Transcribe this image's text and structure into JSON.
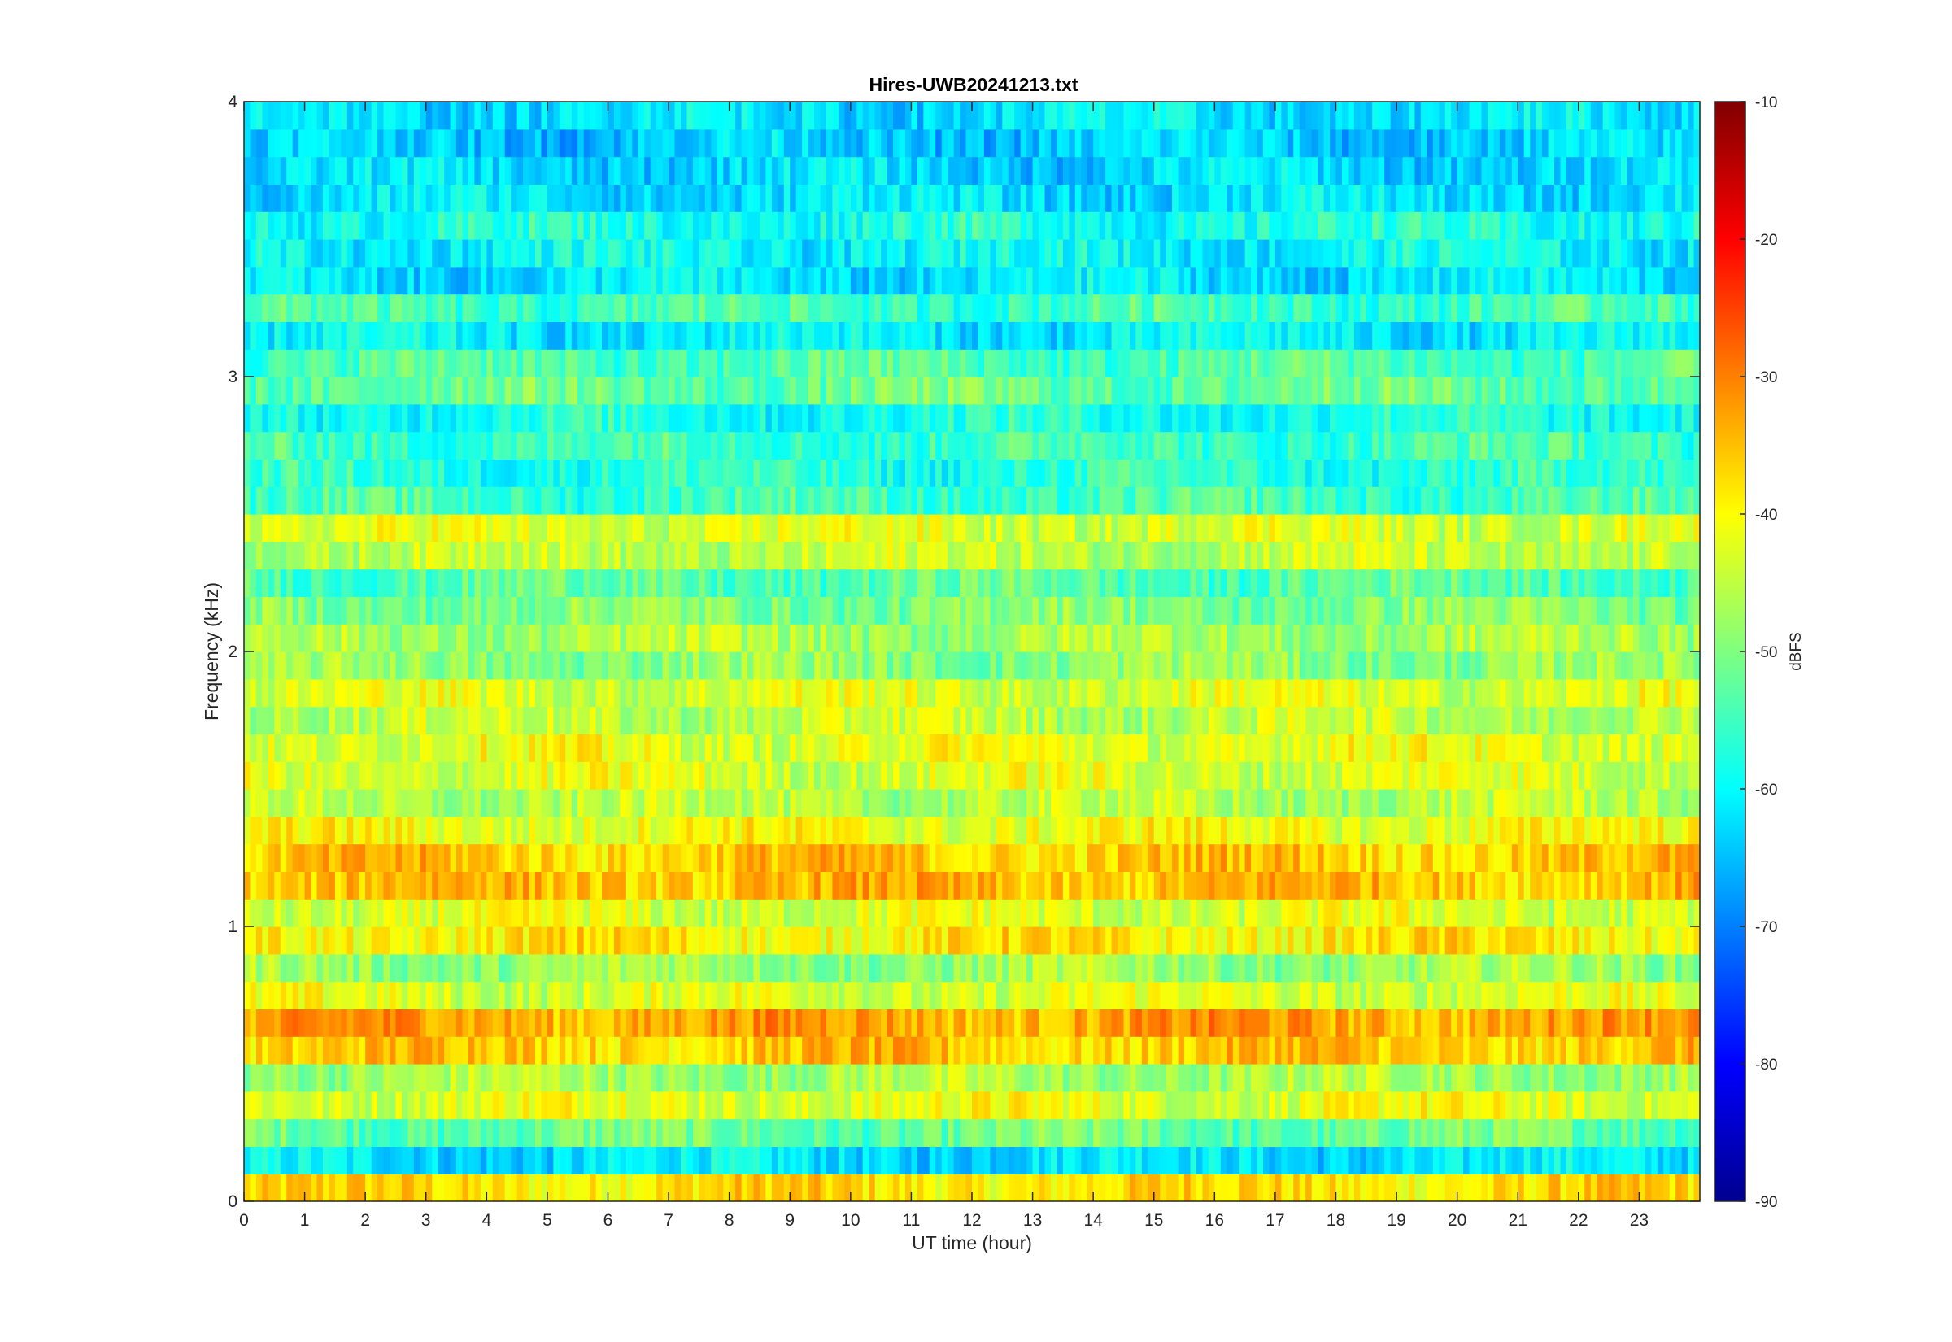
{
  "chart_data": {
    "type": "heatmap",
    "title": "Hires-UWB20241213.txt",
    "xlabel": "UT time (hour)",
    "ylabel": "Frequency (kHz)",
    "xlim": [
      0,
      24
    ],
    "ylim": [
      0,
      4
    ],
    "x_ticks": [
      "0",
      "1",
      "2",
      "3",
      "4",
      "5",
      "6",
      "7",
      "8",
      "9",
      "10",
      "11",
      "12",
      "13",
      "14",
      "15",
      "16",
      "17",
      "18",
      "19",
      "20",
      "21",
      "22",
      "23"
    ],
    "y_ticks": [
      "0",
      "1",
      "2",
      "3",
      "4"
    ],
    "colorbar": {
      "label": "dBFS",
      "colormap": "jet",
      "range": [
        -90,
        -10
      ],
      "ticks": [
        "-90",
        "-80",
        "-70",
        "-60",
        "-50",
        "-40",
        "-30",
        "-20",
        "-10"
      ]
    },
    "bands": [
      {
        "f": 0.05,
        "level": -38
      },
      {
        "f": 0.15,
        "level": -62
      },
      {
        "f": 0.25,
        "level": -52
      },
      {
        "f": 0.35,
        "level": -42
      },
      {
        "f": 0.45,
        "level": -47
      },
      {
        "f": 0.55,
        "level": -36
      },
      {
        "f": 0.65,
        "level": -33
      },
      {
        "f": 0.75,
        "level": -43
      },
      {
        "f": 0.85,
        "level": -48
      },
      {
        "f": 0.95,
        "level": -39
      },
      {
        "f": 1.05,
        "level": -43
      },
      {
        "f": 1.15,
        "level": -35
      },
      {
        "f": 1.25,
        "level": -36
      },
      {
        "f": 1.35,
        "level": -41
      },
      {
        "f": 1.45,
        "level": -46
      },
      {
        "f": 1.55,
        "level": -43
      },
      {
        "f": 1.65,
        "level": -42
      },
      {
        "f": 1.75,
        "level": -45
      },
      {
        "f": 1.85,
        "level": -43
      },
      {
        "f": 1.95,
        "level": -49
      },
      {
        "f": 2.05,
        "level": -47
      },
      {
        "f": 2.15,
        "level": -50
      },
      {
        "f": 2.25,
        "level": -53
      },
      {
        "f": 2.35,
        "level": -45
      },
      {
        "f": 2.45,
        "level": -43
      },
      {
        "f": 2.55,
        "level": -55
      },
      {
        "f": 2.65,
        "level": -57
      },
      {
        "f": 2.75,
        "level": -55
      },
      {
        "f": 2.85,
        "level": -58
      },
      {
        "f": 2.95,
        "level": -52
      },
      {
        "f": 3.05,
        "level": -54
      },
      {
        "f": 3.15,
        "level": -61
      },
      {
        "f": 3.25,
        "level": -55
      },
      {
        "f": 3.35,
        "level": -62
      },
      {
        "f": 3.45,
        "level": -60
      },
      {
        "f": 3.55,
        "level": -58
      },
      {
        "f": 3.65,
        "level": -62
      },
      {
        "f": 3.75,
        "level": -63
      },
      {
        "f": 3.85,
        "level": -64
      },
      {
        "f": 3.95,
        "level": -62
      }
    ]
  }
}
